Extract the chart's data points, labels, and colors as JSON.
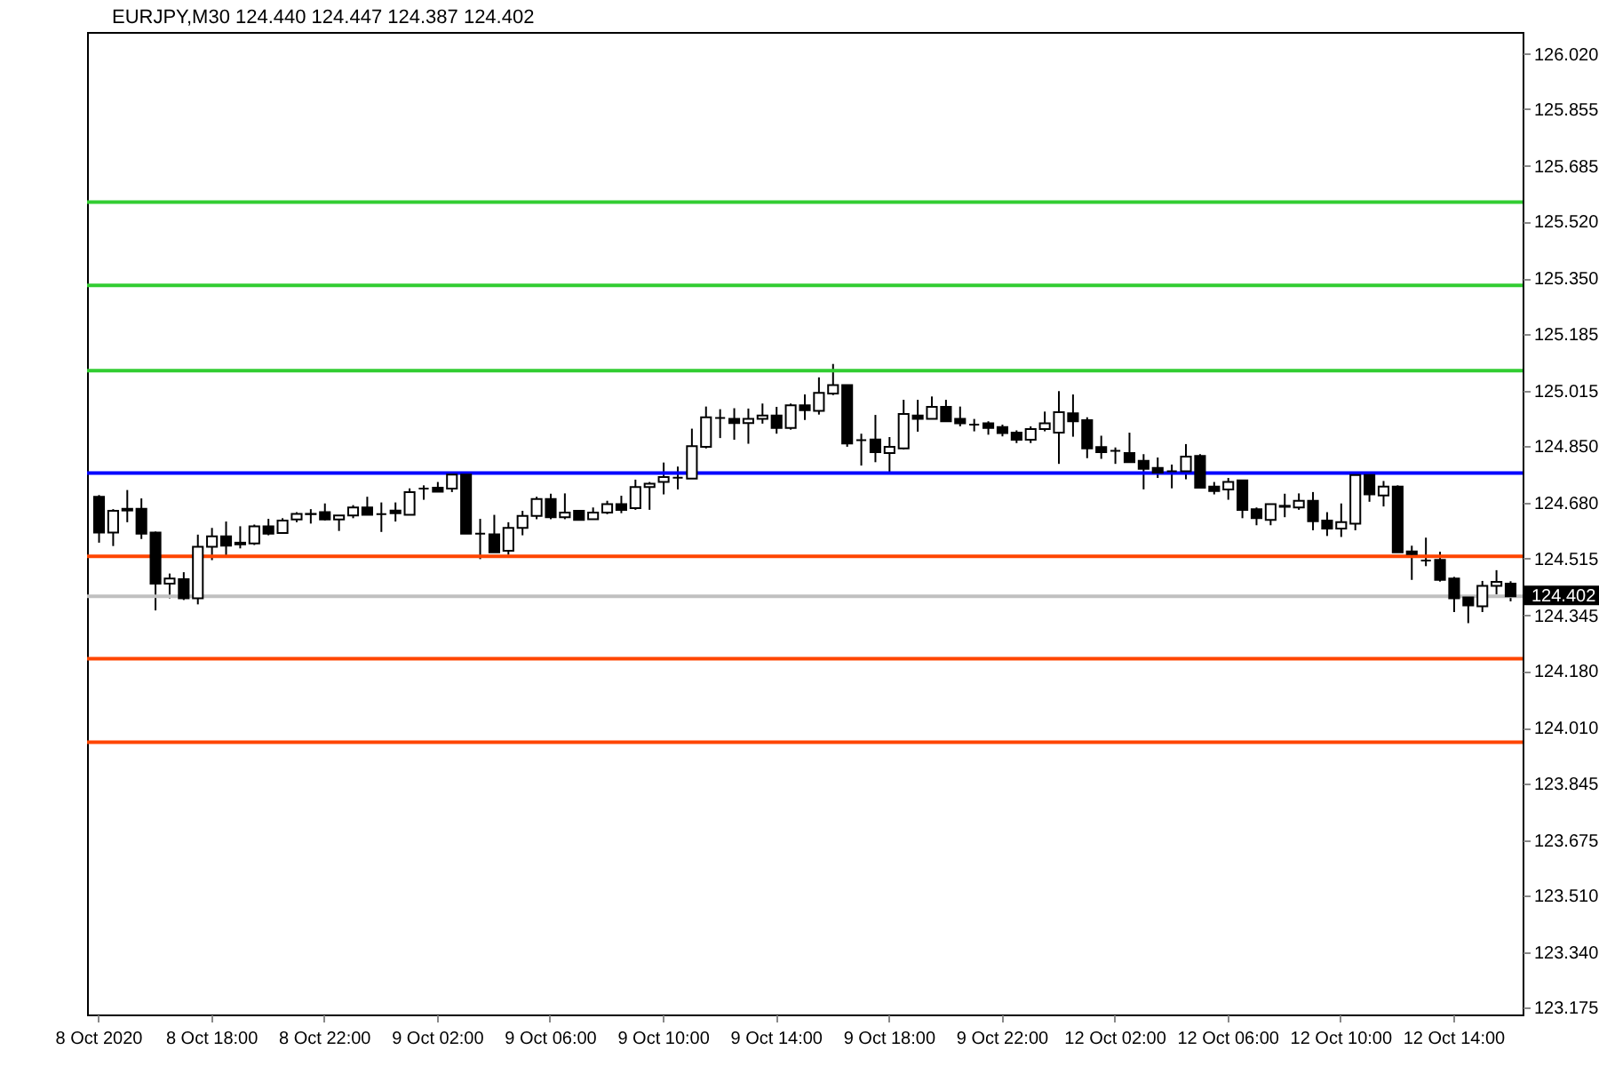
{
  "chart_data": {
    "type": "candlestick",
    "title": "EURJPY,M30 124.440 124.447 124.387 124.402",
    "categories": [
      "8 Oct 2020",
      null,
      null,
      null,
      null,
      null,
      null,
      null,
      "8 Oct 18:00",
      null,
      null,
      null,
      null,
      null,
      null,
      null,
      "8 Oct 22:00",
      null,
      null,
      null,
      null,
      null,
      null,
      null,
      "9 Oct 02:00",
      null,
      null,
      null,
      null,
      null,
      null,
      null,
      "9 Oct 06:00",
      null,
      null,
      null,
      null,
      null,
      null,
      null,
      "9 Oct 10:00",
      null,
      null,
      null,
      null,
      null,
      null,
      null,
      "9 Oct 14:00",
      null,
      null,
      null,
      null,
      null,
      null,
      null,
      "9 Oct 18:00",
      null,
      null,
      null,
      null,
      null,
      null,
      null,
      "9 Oct 22:00",
      null,
      null,
      null,
      null,
      null,
      null,
      null,
      "12 Oct 02:00",
      null,
      null,
      null,
      null,
      null,
      null,
      null,
      "12 Oct 06:00",
      null,
      null,
      null,
      null,
      null,
      null,
      null,
      "12 Oct 10:00",
      null,
      null,
      null,
      null,
      null,
      null,
      null,
      "12 Oct 14:00",
      null,
      null,
      null,
      null
    ],
    "ohlc": [
      [
        124.699,
        124.704,
        124.562,
        124.592
      ],
      [
        124.592,
        124.662,
        124.552,
        124.657
      ],
      [
        124.658,
        124.719,
        124.623,
        124.663
      ],
      [
        124.663,
        124.694,
        124.573,
        124.589
      ],
      [
        124.592,
        124.595,
        124.36,
        124.44
      ],
      [
        124.44,
        124.47,
        124.396,
        124.455
      ],
      [
        124.453,
        124.474,
        124.391,
        124.396
      ],
      [
        124.396,
        124.586,
        124.378,
        124.55
      ],
      [
        124.55,
        124.606,
        124.51,
        124.581
      ],
      [
        124.581,
        124.625,
        124.523,
        124.553
      ],
      [
        124.557,
        124.611,
        124.545,
        124.562
      ],
      [
        124.56,
        124.616,
        124.555,
        124.611
      ],
      [
        124.611,
        124.633,
        124.584,
        124.589
      ],
      [
        124.591,
        124.635,
        124.591,
        124.628
      ],
      [
        124.631,
        124.653,
        124.623,
        124.648
      ],
      [
        124.648,
        124.662,
        124.619,
        124.647
      ],
      [
        124.653,
        124.679,
        124.628,
        124.631
      ],
      [
        124.631,
        124.643,
        124.597,
        124.643
      ],
      [
        124.643,
        124.674,
        124.635,
        124.667
      ],
      [
        124.667,
        124.699,
        124.645,
        124.645
      ],
      [
        124.647,
        124.682,
        124.594,
        124.647
      ],
      [
        124.658,
        124.682,
        124.625,
        124.65
      ],
      [
        124.645,
        124.724,
        124.645,
        124.713
      ],
      [
        124.723,
        124.733,
        124.69,
        124.723
      ],
      [
        124.726,
        124.743,
        124.714,
        124.714
      ],
      [
        124.723,
        124.771,
        124.713,
        124.765
      ],
      [
        124.765,
        124.765,
        124.589,
        124.589
      ],
      [
        124.589,
        124.633,
        124.513,
        124.589
      ],
      [
        124.587,
        124.645,
        124.533,
        124.533
      ],
      [
        124.538,
        124.623,
        124.526,
        124.606
      ],
      [
        124.606,
        124.657,
        124.584,
        124.642
      ],
      [
        124.642,
        124.699,
        124.632,
        124.692
      ],
      [
        124.692,
        124.708,
        124.632,
        124.638
      ],
      [
        124.638,
        124.709,
        124.632,
        124.652
      ],
      [
        124.657,
        124.657,
        124.63,
        124.63
      ],
      [
        124.632,
        124.667,
        124.632,
        124.652
      ],
      [
        124.652,
        124.687,
        124.647,
        124.677
      ],
      [
        124.677,
        124.702,
        124.65,
        124.66
      ],
      [
        124.665,
        124.75,
        124.66,
        124.728
      ],
      [
        124.728,
        124.743,
        124.66,
        124.738
      ],
      [
        124.743,
        124.801,
        124.706,
        124.758
      ],
      [
        124.756,
        124.789,
        124.721,
        124.756
      ],
      [
        124.753,
        124.902,
        124.753,
        124.85
      ],
      [
        124.848,
        124.968,
        124.843,
        124.936
      ],
      [
        124.934,
        124.96,
        124.874,
        124.934
      ],
      [
        124.931,
        124.963,
        124.869,
        124.919
      ],
      [
        124.919,
        124.962,
        124.857,
        124.931
      ],
      [
        124.931,
        124.977,
        124.917,
        124.941
      ],
      [
        124.941,
        124.967,
        124.887,
        124.904
      ],
      [
        124.904,
        124.977,
        124.899,
        124.972
      ],
      [
        124.972,
        125.004,
        124.928,
        124.957
      ],
      [
        124.955,
        125.055,
        124.944,
        125.009
      ],
      [
        125.007,
        125.095,
        125.002,
        125.032
      ],
      [
        125.032,
        125.032,
        124.848,
        124.858
      ],
      [
        124.868,
        124.887,
        124.792,
        124.868
      ],
      [
        124.87,
        124.943,
        124.802,
        124.832
      ],
      [
        124.829,
        124.877,
        124.772,
        124.848
      ],
      [
        124.843,
        124.988,
        124.84,
        124.946
      ],
      [
        124.941,
        124.988,
        124.893,
        124.931
      ],
      [
        124.931,
        124.998,
        124.931,
        124.967
      ],
      [
        124.967,
        124.988,
        124.924,
        124.924
      ],
      [
        124.931,
        124.968,
        124.909,
        124.918
      ],
      [
        124.914,
        124.931,
        124.894,
        124.914
      ],
      [
        124.918,
        124.924,
        124.884,
        124.904
      ],
      [
        124.907,
        124.914,
        124.879,
        124.889
      ],
      [
        124.89,
        124.897,
        124.859,
        124.869
      ],
      [
        124.869,
        124.909,
        124.859,
        124.901
      ],
      [
        124.901,
        124.953,
        124.894,
        124.918
      ],
      [
        124.89,
        125.014,
        124.797,
        124.951
      ],
      [
        124.948,
        125.004,
        124.878,
        124.924
      ],
      [
        124.927,
        124.936,
        124.814,
        124.843
      ],
      [
        124.847,
        124.881,
        124.812,
        124.832
      ],
      [
        124.836,
        124.846,
        124.797,
        124.836
      ],
      [
        124.829,
        124.89,
        124.802,
        124.802
      ],
      [
        124.806,
        124.826,
        124.721,
        124.782
      ],
      [
        124.785,
        124.816,
        124.755,
        124.771
      ],
      [
        124.775,
        124.795,
        124.724,
        124.775
      ],
      [
        124.775,
        124.856,
        124.751,
        124.819
      ],
      [
        124.821,
        124.826,
        124.724,
        124.726
      ],
      [
        124.729,
        124.743,
        124.706,
        124.716
      ],
      [
        124.721,
        124.755,
        124.69,
        124.743
      ],
      [
        124.748,
        124.748,
        124.635,
        124.66
      ],
      [
        124.662,
        124.667,
        124.614,
        124.635
      ],
      [
        124.63,
        124.677,
        124.614,
        124.677
      ],
      [
        124.672,
        124.708,
        124.638,
        124.669
      ],
      [
        124.667,
        124.709,
        124.66,
        124.687
      ],
      [
        124.687,
        124.713,
        124.599,
        124.626
      ],
      [
        124.628,
        124.653,
        124.582,
        124.604
      ],
      [
        124.604,
        124.679,
        124.579,
        124.623
      ],
      [
        124.619,
        124.767,
        124.599,
        124.764
      ],
      [
        124.764,
        124.764,
        124.684,
        124.706
      ],
      [
        124.703,
        124.746,
        124.67,
        124.729
      ],
      [
        124.729,
        124.733,
        124.533,
        124.533
      ],
      [
        124.536,
        124.553,
        124.451,
        124.528
      ],
      [
        124.509,
        124.577,
        124.492,
        124.509
      ],
      [
        124.511,
        124.535,
        124.446,
        124.451
      ],
      [
        124.455,
        124.46,
        124.355,
        124.396
      ],
      [
        124.399,
        124.404,
        124.322,
        124.375
      ],
      [
        124.372,
        124.448,
        124.355,
        124.433
      ],
      [
        124.433,
        124.48,
        124.408,
        124.445
      ],
      [
        124.44,
        124.447,
        124.387,
        124.402
      ]
    ],
    "ylim": [
      123.155,
      126.085
    ],
    "yticks": [
      {
        "value": 123.175,
        "label": "123.175"
      },
      {
        "value": 123.34,
        "label": "123.340"
      },
      {
        "value": 123.51,
        "label": "123.510"
      },
      {
        "value": 123.675,
        "label": "123.675"
      },
      {
        "value": 123.845,
        "label": "123.845"
      },
      {
        "value": 124.01,
        "label": "124.010"
      },
      {
        "value": 124.18,
        "label": "124.180"
      },
      {
        "value": 124.345,
        "label": "124.345"
      },
      {
        "value": 124.515,
        "label": "124.515"
      },
      {
        "value": 124.68,
        "label": "124.680"
      },
      {
        "value": 124.85,
        "label": "124.850"
      },
      {
        "value": 125.015,
        "label": "125.015"
      },
      {
        "value": 125.185,
        "label": "125.185"
      },
      {
        "value": 125.35,
        "label": "125.350"
      },
      {
        "value": 125.52,
        "label": "125.520"
      },
      {
        "value": 125.685,
        "label": "125.685"
      },
      {
        "value": 125.855,
        "label": "125.855"
      },
      {
        "value": 126.02,
        "label": "126.020"
      }
    ],
    "ref_lines": [
      {
        "axis": "y",
        "value": 125.578,
        "label": null,
        "color": "#32cd32"
      },
      {
        "axis": "y",
        "value": 125.329,
        "label": null,
        "color": "#32cd32"
      },
      {
        "axis": "y",
        "value": 125.075,
        "label": null,
        "color": "#32cd32"
      },
      {
        "axis": "y",
        "value": 124.77,
        "label": null,
        "color": "#0000ff"
      },
      {
        "axis": "y",
        "value": 124.521,
        "label": null,
        "color": "#ff4500"
      },
      {
        "axis": "y",
        "value": 124.216,
        "label": null,
        "color": "#ff4500"
      },
      {
        "axis": "y",
        "value": 123.967,
        "label": null,
        "color": "#ff4500"
      },
      {
        "axis": "y",
        "value": 124.402,
        "label": "124.402",
        "color": "#c0c0c0"
      }
    ],
    "grid": false
  }
}
